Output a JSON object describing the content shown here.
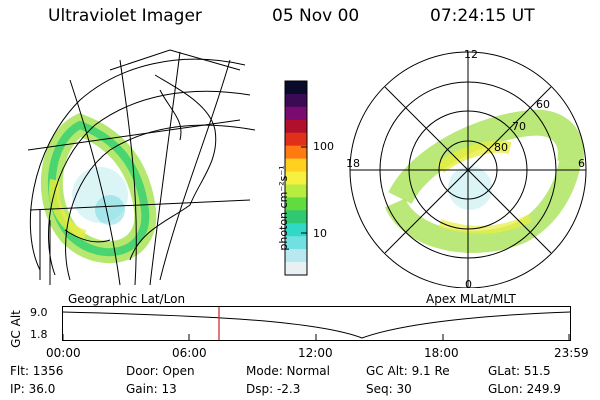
{
  "header": {
    "instrument": "Ultraviolet Imager",
    "date": "05 Nov 00",
    "time": "07:24:15 UT"
  },
  "colorbar": {
    "unit_label": "photon cm⁻²s⁻¹",
    "ticks": [
      "100",
      "10"
    ],
    "colors": [
      "#0a0a2a",
      "#3a0a55",
      "#7a0a70",
      "#b0102c",
      "#e0301a",
      "#ff7a10",
      "#ffd020",
      "#f8f040",
      "#b8ec40",
      "#60dc40",
      "#30c870",
      "#30d8c8",
      "#70e0e0",
      "#b8e8f0",
      "#e8f0f4"
    ]
  },
  "panels": {
    "geographic_label": "Geographic Lat/Lon",
    "apex_label": "Apex MLat/MLT"
  },
  "polar_plot": {
    "mlt_labels": [
      "12",
      "18",
      "6",
      "0"
    ],
    "lat_labels": [
      "60",
      "70",
      "80"
    ]
  },
  "orbit_plot": {
    "ylabel": "GC Alt",
    "yticks": [
      "9.0",
      "1.8"
    ],
    "xticks": [
      "00:00",
      "06:00",
      "12:00",
      "18:00",
      "23:59"
    ],
    "current_marker_time": "07:24",
    "marker_color": "#cc2020"
  },
  "info": {
    "flt": "Flt: 1356",
    "ip": "IP: 36.0",
    "door": "Door: Open",
    "gain": "Gain: 13",
    "mode": "Mode: Normal",
    "dsp": "Dsp:   -2.3",
    "gcalt": "GC Alt: 9.1 Re",
    "seq": "Seq: 30",
    "glat": "GLat:  51.5",
    "glon": "GLon: 249.9"
  }
}
